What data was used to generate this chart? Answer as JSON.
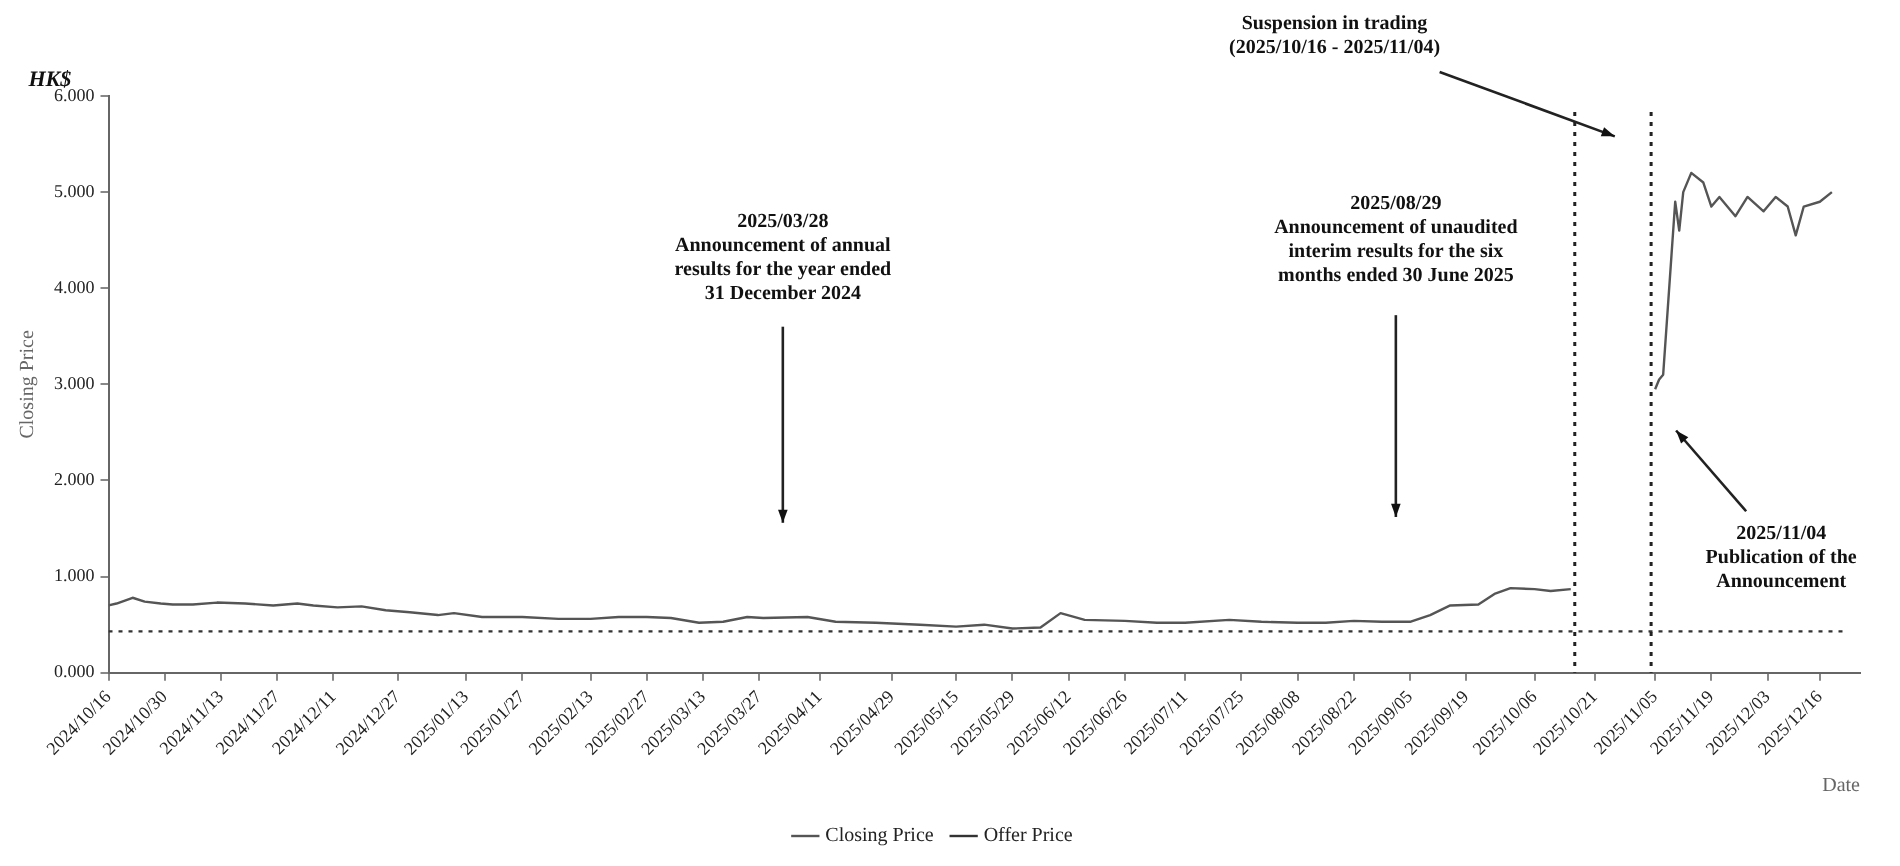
{
  "chart_data": {
    "type": "line",
    "xlabel": "Date",
    "ylabel": "Closing Price",
    "xlim": [
      "2024-10-16",
      "2025-12-26"
    ],
    "ylim": [
      0,
      6
    ],
    "yticks": [
      {
        "value": 0,
        "label": "0.000"
      },
      {
        "value": 1,
        "label": "1.000"
      },
      {
        "value": 2,
        "label": "2.000"
      },
      {
        "value": 3,
        "label": "3.000"
      },
      {
        "value": 4,
        "label": "4.000"
      },
      {
        "value": 5,
        "label": "5.000"
      },
      {
        "value": 6,
        "label": "6.000"
      }
    ],
    "xticks": [
      {
        "value": "2024-10-16",
        "label": "2024/10/16"
      },
      {
        "value": "2024-10-30",
        "label": "2024/10/30"
      },
      {
        "value": "2024-11-13",
        "label": "2024/11/13"
      },
      {
        "value": "2024-11-27",
        "label": "2024/11/27"
      },
      {
        "value": "2024-12-11",
        "label": "2024/12/11"
      },
      {
        "value": "2024-12-27",
        "label": "2024/12/27"
      },
      {
        "value": "2025-01-13",
        "label": "2025/01/13"
      },
      {
        "value": "2025-01-27",
        "label": "2025/01/27"
      },
      {
        "value": "2025-02-13",
        "label": "2025/02/13"
      },
      {
        "value": "2025-02-27",
        "label": "2025/02/27"
      },
      {
        "value": "2025-03-13",
        "label": "2025/03/13"
      },
      {
        "value": "2025-03-27",
        "label": "2025/03/27"
      },
      {
        "value": "2025-04-11",
        "label": "2025/04/11"
      },
      {
        "value": "2025-04-29",
        "label": "2025/04/29"
      },
      {
        "value": "2025-05-15",
        "label": "2025/05/15"
      },
      {
        "value": "2025-05-29",
        "label": "2025/05/29"
      },
      {
        "value": "2025-06-12",
        "label": "2025/06/12"
      },
      {
        "value": "2025-06-26",
        "label": "2025/06/26"
      },
      {
        "value": "2025-07-11",
        "label": "2025/07/11"
      },
      {
        "value": "2025-07-25",
        "label": "2025/07/25"
      },
      {
        "value": "2025-08-08",
        "label": "2025/08/08"
      },
      {
        "value": "2025-08-22",
        "label": "2025/08/22"
      },
      {
        "value": "2025-09-05",
        "label": "2025/09/05"
      },
      {
        "value": "2025-09-19",
        "label": "2025/09/19"
      },
      {
        "value": "2025-10-06",
        "label": "2025/10/06"
      },
      {
        "value": "2025-10-21",
        "label": "2025/10/21"
      },
      {
        "value": "2025-11-05",
        "label": "2025/11/05"
      },
      {
        "value": "2025-11-19",
        "label": "2025/11/19"
      },
      {
        "value": "2025-12-03",
        "label": "2025/12/03"
      },
      {
        "value": "2025-12-16",
        "label": "2025/12/16"
      }
    ],
    "grid": false,
    "legend": "bottom",
    "marker": "none",
    "series": [
      {
        "name": "Closing Price",
        "color": "#555555",
        "line_style": "solid",
        "x": [
          "2024-10-16",
          "2024-10-18",
          "2024-10-22",
          "2024-10-25",
          "2024-10-29",
          "2024-11-01",
          "2024-11-06",
          "2024-11-12",
          "2024-11-19",
          "2024-11-26",
          "2024-12-02",
          "2024-12-06",
          "2024-12-12",
          "2024-12-18",
          "2024-12-24",
          "2024-12-30",
          "2025-01-06",
          "2025-01-10",
          "2025-01-17",
          "2025-01-27",
          "2025-02-05",
          "2025-02-13",
          "2025-02-20",
          "2025-02-27",
          "2025-03-05",
          "2025-03-12",
          "2025-03-18",
          "2025-03-24",
          "2025-03-28",
          "2025-04-08",
          "2025-04-15",
          "2025-04-25",
          "2025-05-06",
          "2025-05-15",
          "2025-05-22",
          "2025-05-29",
          "2025-06-05",
          "2025-06-10",
          "2025-06-16",
          "2025-06-26",
          "2025-07-04",
          "2025-07-11",
          "2025-07-22",
          "2025-07-30",
          "2025-08-08",
          "2025-08-15",
          "2025-08-22",
          "2025-08-29",
          "2025-09-05",
          "2025-09-10",
          "2025-09-15",
          "2025-09-22",
          "2025-09-26",
          "2025-09-30",
          "2025-10-06",
          "2025-10-10",
          "2025-10-15",
          "2025-10-25",
          "2025-11-05",
          "2025-11-06",
          "2025-11-07",
          "2025-11-10",
          "2025-11-11",
          "2025-11-12",
          "2025-11-14",
          "2025-11-17",
          "2025-11-19",
          "2025-11-21",
          "2025-11-25",
          "2025-11-28",
          "2025-12-02",
          "2025-12-05",
          "2025-12-08",
          "2025-12-10",
          "2025-12-12",
          "2025-12-16",
          "2025-12-19"
        ],
        "values": [
          0.7,
          0.72,
          0.78,
          0.74,
          0.72,
          0.71,
          0.71,
          0.73,
          0.72,
          0.7,
          0.72,
          0.7,
          0.68,
          0.69,
          0.65,
          0.63,
          0.6,
          0.62,
          0.58,
          0.58,
          0.56,
          0.56,
          0.58,
          0.58,
          0.57,
          0.52,
          0.53,
          0.58,
          0.57,
          0.58,
          0.53,
          0.52,
          0.5,
          0.48,
          0.5,
          0.46,
          0.47,
          0.62,
          0.55,
          0.54,
          0.52,
          0.52,
          0.55,
          0.53,
          0.52,
          0.52,
          0.54,
          0.53,
          0.53,
          0.6,
          0.7,
          0.71,
          0.82,
          0.88,
          0.87,
          0.85,
          0.87,
          null,
          2.95,
          3.05,
          3.1,
          4.9,
          4.6,
          5.0,
          5.2,
          5.1,
          4.85,
          4.95,
          4.75,
          4.95,
          4.8,
          4.95,
          4.85,
          4.55,
          4.85,
          4.9,
          5.0
        ]
      },
      {
        "name": "Offer Price",
        "color": "#333333",
        "line_style": "dotted",
        "x": [
          "2024-10-16",
          "2025-12-22"
        ],
        "values": [
          0.43,
          0.43
        ]
      }
    ],
    "ref_lines": [
      {
        "axis": "x",
        "value": "2025-10-16",
        "color": "#222222",
        "line_style": "dotted"
      },
      {
        "axis": "x",
        "value": "2025-11-04",
        "color": "#222222",
        "line_style": "dotted"
      }
    ],
    "annotations": [
      "HK$",
      "2025/03/28\nAnnouncement of annual\nresults for the year ended\n31 December 2024",
      "2025/08/29\nAnnouncement of unaudited\ninterim results for the six\nmonths ended 30 June 2025",
      "Suspension in trading\n(2025/10/16 - 2025/11/04)",
      "2025/11/04\nPublication of the\nAnnouncement"
    ]
  }
}
